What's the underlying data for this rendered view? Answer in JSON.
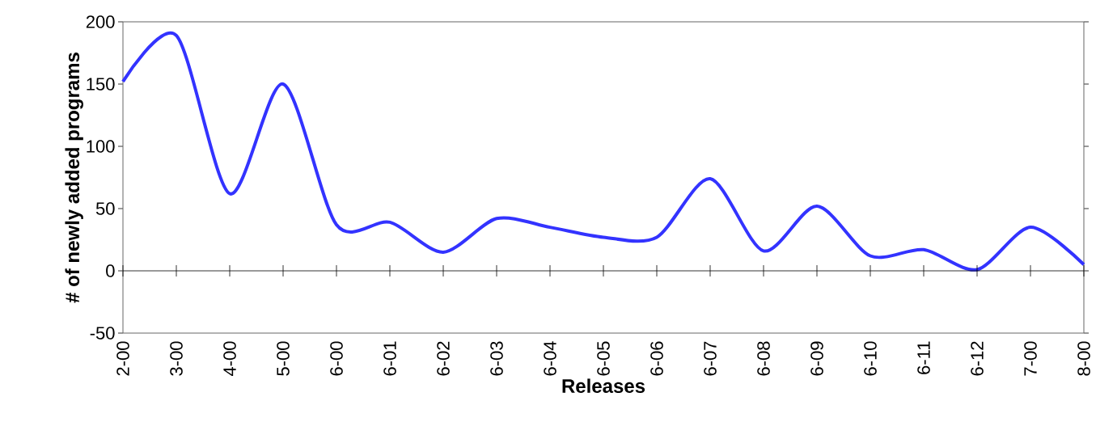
{
  "chart_data": {
    "type": "line",
    "xlabel": "Releases",
    "ylabel": "# of newly added programs",
    "categories": [
      "2-00",
      "3-00",
      "4-00",
      "5-00",
      "6-00",
      "6-01",
      "6-02",
      "6-03",
      "6-04",
      "6-05",
      "6-06",
      "6-07",
      "6-08",
      "6-09",
      "6-10",
      "6-11",
      "6-12",
      "7-00",
      "8-00"
    ],
    "series": [
      {
        "color": "#3333ff",
        "values": [
          152,
          189,
          62,
          150,
          37,
          39,
          15,
          42,
          35,
          27,
          27,
          74,
          16,
          52,
          12,
          17,
          1,
          35,
          5
        ]
      }
    ],
    "ylim": [
      -50,
      200
    ],
    "yticks": [
      -50,
      0,
      50,
      100,
      150,
      200
    ],
    "marker": "none",
    "line_style": "solid"
  }
}
